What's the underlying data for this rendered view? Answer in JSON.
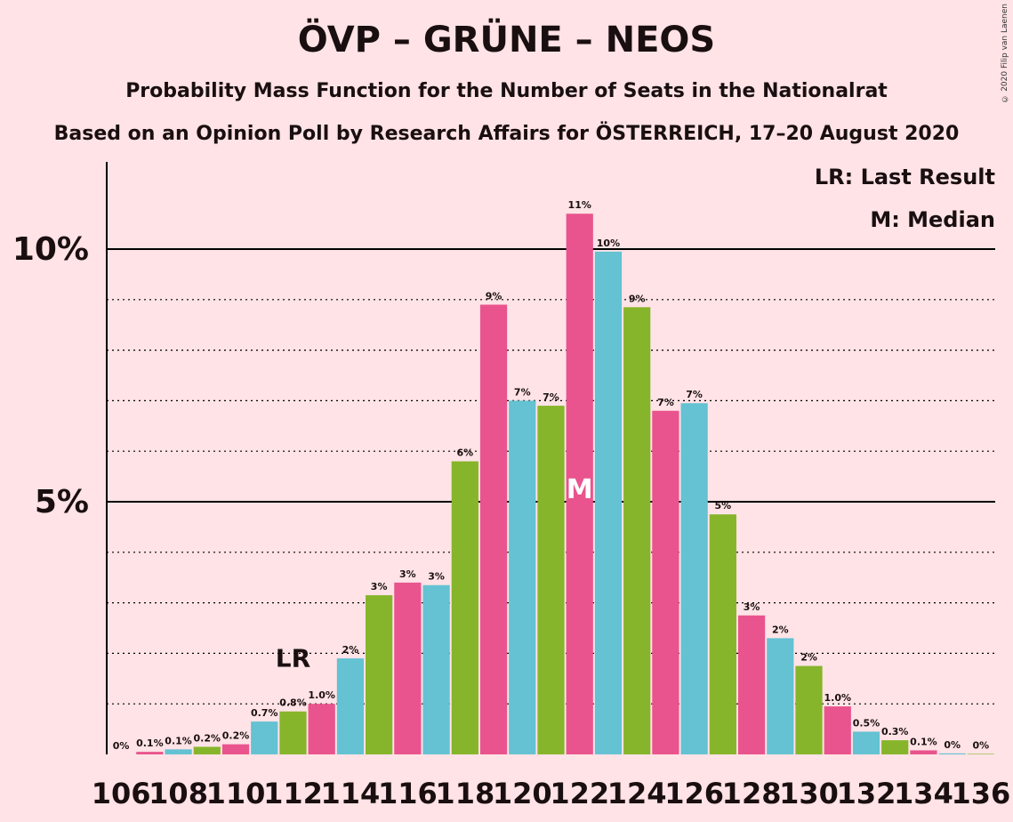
{
  "title": "ÖVP – GRÜNE – NEOS",
  "subtitle": "Probability Mass Function for the Number of Seats in the Nationalrat",
  "subtitle2": "Based on an Opinion Poll by Research Affairs for ÖSTERREICH, 17–20 August 2020",
  "copyright": "© 2020 Filip van Laenen",
  "legend": {
    "lr": "LR: Last Result",
    "m": "M: Median"
  },
  "colors": {
    "pink": "#e9548e",
    "cyan": "#64c2d2",
    "green": "#86b52b",
    "bg": "#ffe3e6"
  },
  "chart_data": {
    "type": "bar",
    "x": [
      106,
      107,
      108,
      109,
      110,
      111,
      112,
      113,
      114,
      115,
      116,
      117,
      118,
      119,
      120,
      121,
      122,
      123,
      124,
      125,
      126,
      127,
      128,
      129,
      130,
      131,
      132,
      133,
      134,
      135,
      136
    ],
    "values": [
      0.0,
      0.05,
      0.1,
      0.15,
      0.2,
      0.65,
      0.85,
      1.0,
      1.9,
      3.15,
      3.4,
      3.35,
      5.8,
      8.9,
      7.0,
      6.9,
      10.7,
      9.95,
      8.85,
      6.8,
      6.95,
      4.75,
      2.75,
      2.3,
      1.75,
      0.95,
      0.45,
      0.28,
      0.08,
      0.02,
      0.01
    ],
    "labels": [
      "0%",
      "0.1%",
      "0.1%",
      "0.2%",
      "0.2%",
      "0.7%",
      "0.8%",
      "1.0%",
      "2%",
      "3%",
      "3%",
      "3%",
      "6%",
      "9%",
      "7%",
      "7%",
      "11%",
      "10%",
      "9%",
      "7%",
      "7%",
      "5%",
      "3%",
      "2%",
      "2%",
      "1.0%",
      "0.5%",
      "0.3%",
      "0.1%",
      "0%",
      "0%"
    ],
    "colors": [
      "cyan",
      "pink",
      "cyan",
      "green",
      "pink",
      "cyan",
      "green",
      "pink",
      "cyan",
      "green",
      "pink",
      "cyan",
      "green",
      "pink",
      "cyan",
      "green",
      "pink",
      "cyan",
      "green",
      "pink",
      "cyan",
      "green",
      "pink",
      "cyan",
      "green",
      "pink",
      "cyan",
      "green",
      "pink",
      "cyan",
      "green"
    ],
    "x_tick_labels": [
      "106",
      "108",
      "110",
      "112",
      "114",
      "116",
      "118",
      "120",
      "122",
      "124",
      "126",
      "128",
      "130",
      "132",
      "134",
      "136"
    ],
    "y_tick_labels": [
      {
        "value": 5,
        "label": "5%"
      },
      {
        "value": 10,
        "label": "10%"
      }
    ],
    "ylim": [
      0,
      11.5
    ],
    "last_result": {
      "x": 112,
      "label": "LR"
    },
    "median": {
      "x": 122,
      "label": "M"
    }
  }
}
